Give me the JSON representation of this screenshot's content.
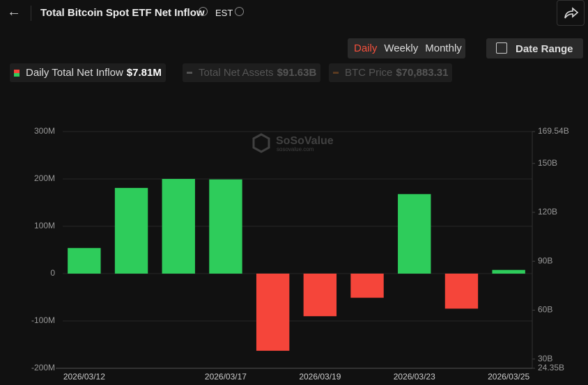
{
  "header": {
    "title": "Total Bitcoin Spot ETF Net Inflow",
    "timezone": "EST",
    "tabs": [
      "Daily",
      "Weekly",
      "Monthly"
    ],
    "date_range": "Date Range"
  },
  "watermark": {
    "brand": "SoSoValue",
    "site": "sosovalue.com"
  },
  "chart_data": {
    "type": "bar",
    "categories": [
      "2026/03/12",
      null,
      null,
      "2026/03/17",
      null,
      "2026/03/19",
      null,
      "2026/03/23",
      null,
      "2026/03/25"
    ],
    "series": [
      {
        "name": "Daily Total Net Inflow",
        "summary": "$7.81M",
        "color": "#2ecc5b",
        "negative_color": "#f5453a",
        "values": [
          54,
          181,
          200,
          199,
          -163,
          -90,
          -51,
          168,
          -74,
          7.81
        ]
      }
    ],
    "inactive_series": [
      {
        "name": "Total Net Assets",
        "summary": "$91.63B"
      },
      {
        "name": "BTC Price",
        "summary": "$70,883.31"
      }
    ],
    "ylim": [
      -200,
      300
    ],
    "yticks": [
      {
        "value": -200,
        "label": "-200M"
      },
      {
        "value": -100,
        "label": "-100M"
      },
      0,
      {
        "value": 100,
        "label": "100M"
      },
      {
        "value": 200,
        "label": "200M"
      },
      {
        "value": 300,
        "label": "300M"
      }
    ],
    "y2lim": [
      24.35,
      169.54
    ],
    "y2ticks": [
      {
        "value": 24.35,
        "label": "24.35B"
      },
      {
        "value": 30,
        "label": "30B"
      },
      {
        "value": 60,
        "label": "60B"
      },
      {
        "value": 90,
        "label": "90B"
      },
      {
        "value": 120,
        "label": "120B"
      },
      {
        "value": 150,
        "label": "150B"
      },
      {
        "value": 169.54,
        "label": "169.54B"
      }
    ],
    "grid": true
  }
}
